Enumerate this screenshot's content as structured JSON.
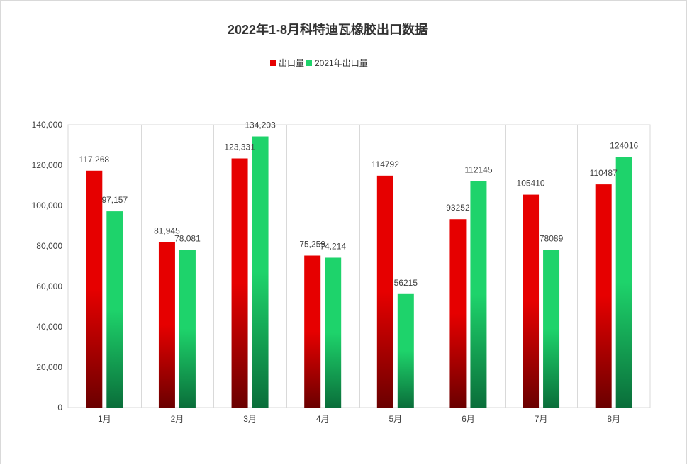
{
  "chart_data": {
    "type": "bar",
    "title": "2022年1-8月科特迪瓦橡胶出口数据",
    "categories": [
      "1月",
      "2月",
      "3月",
      "4月",
      "5月",
      "6月",
      "7月",
      "8月"
    ],
    "series": [
      {
        "name": "出口量",
        "values": [
          117268,
          81945,
          123331,
          75259,
          114792,
          93252,
          105410,
          110487
        ],
        "labels": [
          "117,268",
          "81,945",
          "123,331",
          "75,259",
          "114792",
          "93252",
          "105410",
          "110487"
        ],
        "color_top": "#e60000",
        "color_bottom": "#6b0000"
      },
      {
        "name": "2021年出口量",
        "values": [
          97157,
          78081,
          134203,
          74214,
          56215,
          112145,
          78089,
          124016
        ],
        "labels": [
          "97,157",
          "78,081",
          "134,203",
          "74,214",
          "56215",
          "112145",
          "78089",
          "124016"
        ],
        "color_top": "#1ed36b",
        "color_bottom": "#0a6e3a"
      }
    ],
    "ylim": [
      0,
      140000
    ],
    "yticks": [
      0,
      20000,
      40000,
      60000,
      80000,
      100000,
      120000,
      140000
    ],
    "ytick_labels": [
      "0",
      "20,000",
      "40,000",
      "60,000",
      "80,000",
      "100,000",
      "120,000",
      "140,000"
    ],
    "xlabel": "",
    "ylabel": "",
    "legend_position": "top-center",
    "grid": "vertical category separators"
  }
}
